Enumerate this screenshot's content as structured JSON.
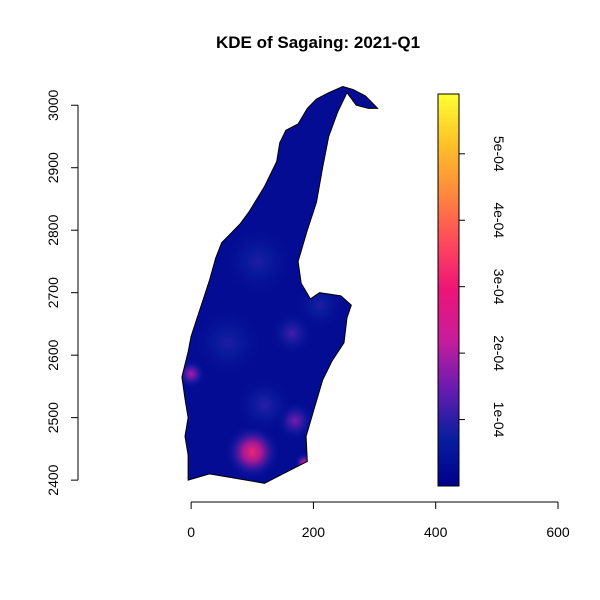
{
  "chart_data": {
    "type": "heatmap",
    "title": "KDE of Sagaing: 2021-Q1",
    "xlabel": "",
    "ylabel": "",
    "xlim": [
      -185,
      600
    ],
    "ylim": [
      2365,
      3050
    ],
    "x_ticks": [
      0,
      200,
      400,
      600
    ],
    "y_ticks": [
      2400,
      2500,
      2600,
      2700,
      2800,
      2900,
      3000
    ],
    "x_tick_labels": [
      "0",
      "200",
      "400",
      "600"
    ],
    "y_tick_labels": [
      "2400",
      "2500",
      "2600",
      "2700",
      "2800",
      "2900",
      "3000"
    ],
    "grid": false,
    "colorbar": {
      "min": 0.0,
      "max": 0.00059,
      "ticks": [
        0.0001,
        0.0002,
        0.0003,
        0.0004,
        0.0005
      ],
      "tick_labels": [
        "1e-04",
        "2e-04",
        "3e-04",
        "4e-04",
        "5e-04"
      ],
      "colors": [
        "#00008B",
        "#0a1ea0",
        "#6a1bb0",
        "#c81d9a",
        "#ec1478",
        "#ff4a5a",
        "#ff8a3c",
        "#ffc227",
        "#ffff33"
      ]
    },
    "region_boundary": [
      [
        -5,
        2400
      ],
      [
        30,
        2410
      ],
      [
        60,
        2405
      ],
      [
        90,
        2400
      ],
      [
        120,
        2395
      ],
      [
        150,
        2410
      ],
      [
        180,
        2425
      ],
      [
        190,
        2430
      ],
      [
        188,
        2470
      ],
      [
        200,
        2510
      ],
      [
        215,
        2560
      ],
      [
        230,
        2590
      ],
      [
        250,
        2620
      ],
      [
        255,
        2660
      ],
      [
        262,
        2680
      ],
      [
        245,
        2695
      ],
      [
        210,
        2700
      ],
      [
        195,
        2690
      ],
      [
        180,
        2715
      ],
      [
        175,
        2750
      ],
      [
        190,
        2800
      ],
      [
        205,
        2845
      ],
      [
        215,
        2900
      ],
      [
        225,
        2950
      ],
      [
        240,
        2990
      ],
      [
        255,
        3020
      ],
      [
        270,
        3000
      ],
      [
        290,
        2995
      ],
      [
        305,
        2995
      ],
      [
        300,
        3000
      ],
      [
        285,
        3015
      ],
      [
        265,
        3025
      ],
      [
        248,
        3030
      ],
      [
        225,
        3020
      ],
      [
        205,
        3010
      ],
      [
        190,
        2995
      ],
      [
        175,
        2970
      ],
      [
        155,
        2960
      ],
      [
        145,
        2940
      ],
      [
        140,
        2910
      ],
      [
        120,
        2870
      ],
      [
        95,
        2830
      ],
      [
        80,
        2810
      ],
      [
        65,
        2795
      ],
      [
        50,
        2780
      ],
      [
        40,
        2755
      ],
      [
        30,
        2720
      ],
      [
        20,
        2690
      ],
      [
        10,
        2660
      ],
      [
        0,
        2630
      ],
      [
        -5,
        2605
      ],
      [
        -10,
        2585
      ],
      [
        -15,
        2565
      ],
      [
        -10,
        2530
      ],
      [
        -5,
        2500
      ],
      [
        -10,
        2470
      ],
      [
        -5,
        2440
      ]
    ],
    "kernels": [
      {
        "x": 100,
        "y": 2445,
        "value": 0.00032,
        "bandwidth": 28
      },
      {
        "x": 185,
        "y": 2428,
        "value": 0.00025,
        "bandwidth": 10
      },
      {
        "x": 0,
        "y": 2570,
        "value": 0.0002,
        "bandwidth": 15
      },
      {
        "x": 170,
        "y": 2495,
        "value": 0.00016,
        "bandwidth": 20
      },
      {
        "x": 165,
        "y": 2635,
        "value": 0.00012,
        "bandwidth": 22
      },
      {
        "x": 120,
        "y": 2520,
        "value": 0.0001,
        "bandwidth": 28
      },
      {
        "x": 210,
        "y": 2680,
        "value": 9e-05,
        "bandwidth": 25
      },
      {
        "x": 110,
        "y": 2750,
        "value": 9e-05,
        "bandwidth": 35
      },
      {
        "x": 60,
        "y": 2620,
        "value": 9e-05,
        "bandwidth": 35
      }
    ]
  }
}
